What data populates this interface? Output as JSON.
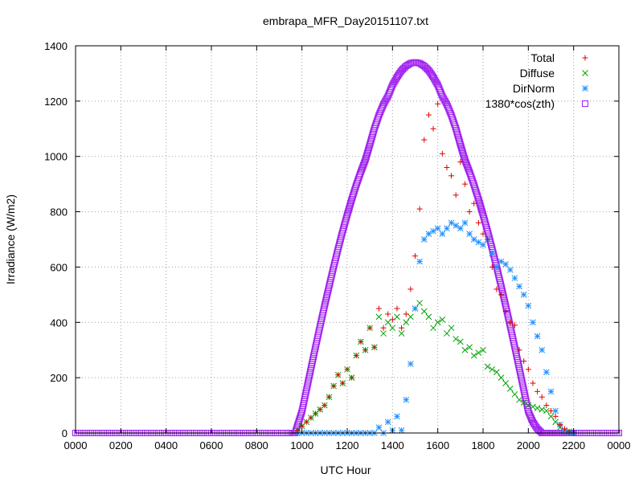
{
  "chart_data": {
    "type": "scatter",
    "title": "embrapa_MFR_Day20151107.txt",
    "xlabel": "UTC Hour",
    "ylabel": "Irradiance (W/m2)",
    "xlim": [
      0,
      24
    ],
    "ylim": [
      0,
      1400
    ],
    "x_tick_labels": [
      "0000",
      "0200",
      "0400",
      "0600",
      "0800",
      "1000",
      "1200",
      "1400",
      "1600",
      "1800",
      "2000",
      "2200",
      "0000"
    ],
    "y_tick_labels": [
      "0",
      "200",
      "400",
      "600",
      "800",
      "1000",
      "1200",
      "1400"
    ],
    "grid": true,
    "legend_position": "top-right",
    "series": [
      {
        "name": "Total",
        "color": "#e00000",
        "marker": "plus",
        "x": [
          9.8,
          10.0,
          10.2,
          10.4,
          10.6,
          10.8,
          11.0,
          11.2,
          11.4,
          11.6,
          11.8,
          12.0,
          12.2,
          12.4,
          12.6,
          12.8,
          13.0,
          13.2,
          13.4,
          13.6,
          13.8,
          14.0,
          14.2,
          14.4,
          14.6,
          14.8,
          15.0,
          15.2,
          15.4,
          15.6,
          15.8,
          16.0,
          16.2,
          16.4,
          16.6,
          16.8,
          17.0,
          17.2,
          17.4,
          17.6,
          17.8,
          18.0,
          18.2,
          18.4,
          18.6,
          18.8,
          19.0,
          19.2,
          19.4,
          19.6,
          19.8,
          20.0,
          20.2,
          20.4,
          20.6,
          20.8,
          21.0,
          21.2,
          21.4,
          21.6,
          21.8,
          22.0
        ],
        "y": [
          10,
          25,
          40,
          55,
          70,
          85,
          100,
          130,
          170,
          210,
          180,
          230,
          200,
          280,
          330,
          300,
          380,
          310,
          450,
          380,
          430,
          410,
          450,
          380,
          430,
          520,
          640,
          810,
          1060,
          1150,
          1100,
          1190,
          1010,
          960,
          930,
          860,
          980,
          900,
          800,
          830,
          760,
          720,
          700,
          600,
          520,
          500,
          440,
          400,
          390,
          300,
          260,
          230,
          180,
          150,
          130,
          100,
          80,
          60,
          30,
          15,
          5,
          0
        ]
      },
      {
        "name": "Diffuse",
        "color": "#00a000",
        "marker": "x",
        "x": [
          9.8,
          10.0,
          10.2,
          10.4,
          10.6,
          10.8,
          11.0,
          11.2,
          11.4,
          11.6,
          11.8,
          12.0,
          12.2,
          12.4,
          12.6,
          12.8,
          13.0,
          13.2,
          13.4,
          13.6,
          13.8,
          14.0,
          14.2,
          14.4,
          14.6,
          14.8,
          15.0,
          15.2,
          15.4,
          15.6,
          15.8,
          16.0,
          16.2,
          16.4,
          16.6,
          16.8,
          17.0,
          17.2,
          17.4,
          17.6,
          17.8,
          18.0,
          18.2,
          18.4,
          18.6,
          18.8,
          19.0,
          19.2,
          19.4,
          19.6,
          19.8,
          20.0,
          20.2,
          20.4,
          20.6,
          20.8,
          21.0,
          21.2,
          21.4,
          21.6,
          21.8,
          22.0
        ],
        "y": [
          10,
          25,
          40,
          55,
          70,
          85,
          100,
          130,
          170,
          210,
          180,
          230,
          200,
          280,
          330,
          300,
          380,
          310,
          420,
          360,
          400,
          380,
          420,
          360,
          400,
          420,
          450,
          470,
          440,
          420,
          380,
          400,
          410,
          360,
          380,
          340,
          330,
          300,
          310,
          280,
          290,
          300,
          240,
          230,
          220,
          200,
          180,
          160,
          140,
          120,
          110,
          100,
          95,
          90,
          85,
          80,
          60,
          40,
          20,
          10,
          5,
          0
        ]
      },
      {
        "name": "DirNorm",
        "color": "#2090ff",
        "marker": "star",
        "x": [
          9.8,
          10.0,
          10.2,
          10.4,
          10.6,
          10.8,
          11.0,
          11.2,
          11.4,
          11.6,
          11.8,
          12.0,
          12.2,
          12.4,
          12.6,
          12.8,
          13.0,
          13.2,
          13.4,
          13.6,
          13.8,
          14.0,
          14.2,
          14.4,
          14.6,
          14.8,
          15.0,
          15.2,
          15.4,
          15.6,
          15.8,
          16.0,
          16.2,
          16.4,
          16.6,
          16.8,
          17.0,
          17.2,
          17.4,
          17.6,
          17.8,
          18.0,
          18.2,
          18.4,
          18.6,
          18.8,
          19.0,
          19.2,
          19.4,
          19.6,
          19.8,
          20.0,
          20.2,
          20.4,
          20.6,
          20.8,
          21.0,
          21.2,
          21.4,
          21.6,
          21.8,
          22.0
        ],
        "y": [
          0,
          0,
          0,
          0,
          0,
          0,
          0,
          0,
          0,
          0,
          0,
          0,
          0,
          0,
          0,
          0,
          0,
          0,
          20,
          0,
          40,
          10,
          60,
          10,
          120,
          250,
          450,
          620,
          700,
          720,
          730,
          740,
          720,
          740,
          760,
          750,
          740,
          760,
          720,
          700,
          690,
          680,
          700,
          650,
          600,
          620,
          610,
          590,
          560,
          530,
          500,
          460,
          400,
          350,
          300,
          220,
          150,
          80,
          30,
          10,
          0,
          0
        ]
      },
      {
        "name": "1380*cos(zth)",
        "color": "#a020f0",
        "marker": "square",
        "x": [
          0,
          1,
          2,
          3,
          4,
          5,
          6,
          7,
          8,
          9,
          9.5,
          9.7,
          10.0,
          10.2,
          10.4,
          10.6,
          10.8,
          11.0,
          11.2,
          11.4,
          11.6,
          11.8,
          12.0,
          12.2,
          12.4,
          12.6,
          12.8,
          13.0,
          13.2,
          13.4,
          13.6,
          13.8,
          14.0,
          14.2,
          14.4,
          14.6,
          14.8,
          15.0,
          15.2,
          15.4,
          15.6,
          15.8,
          16.0,
          16.2,
          16.4,
          16.6,
          16.8,
          17.0,
          17.2,
          17.4,
          17.6,
          17.8,
          18.0,
          18.2,
          18.4,
          18.6,
          18.8,
          19.0,
          19.2,
          19.4,
          19.6,
          19.8,
          20.0,
          20.2,
          20.4,
          20.6,
          20.8,
          21.0,
          21.2,
          21.4,
          21.6,
          21.8,
          21.9,
          22.0,
          23,
          24
        ],
        "y": [
          0,
          0,
          0,
          0,
          0,
          0,
          0,
          0,
          0,
          0,
          0,
          0,
          78,
          156,
          234,
          311,
          386,
          460,
          531,
          600,
          667,
          730,
          789,
          845,
          897,
          944,
          987,
          1043,
          1101,
          1149,
          1188,
          1218,
          1258,
          1287,
          1311,
          1327,
          1337,
          1340,
          1337,
          1327,
          1311,
          1287,
          1258,
          1218,
          1188,
          1149,
          1101,
          1043,
          987,
          944,
          897,
          845,
          789,
          730,
          667,
          600,
          531,
          460,
          386,
          311,
          234,
          156,
          78,
          40,
          15,
          0,
          0,
          0,
          0,
          0,
          0,
          0,
          0,
          0,
          0,
          0
        ]
      }
    ]
  }
}
